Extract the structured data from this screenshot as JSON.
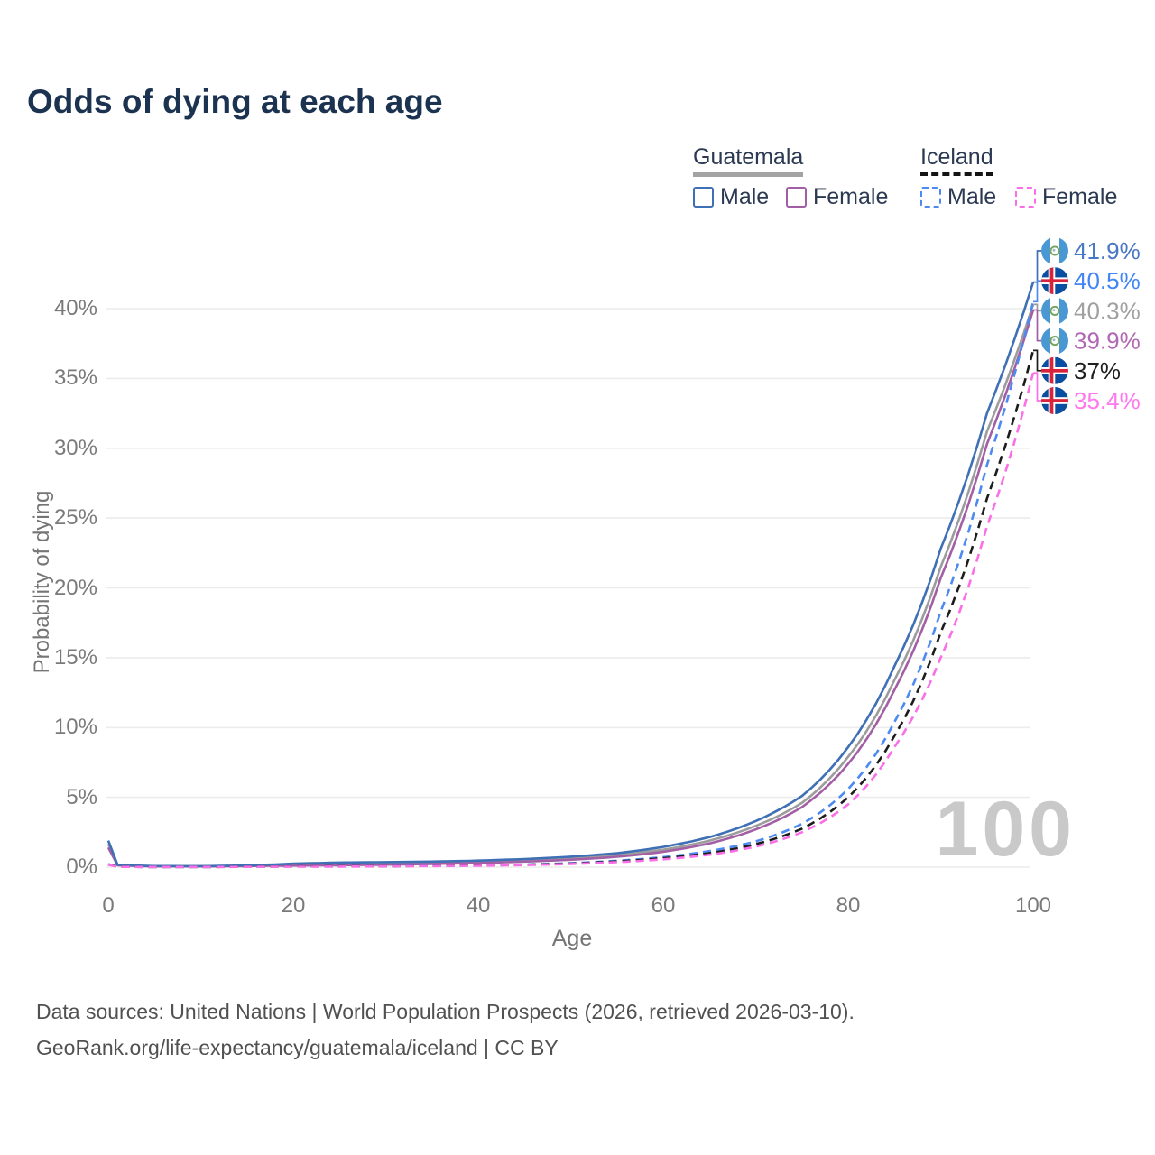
{
  "title": "Odds of dying at each age",
  "legend": {
    "groups": [
      {
        "name": "Guatemala",
        "style": "solid",
        "items": [
          {
            "label": "Male",
            "color": "#3f6fb4"
          },
          {
            "label": "Female",
            "color": "#a35fa6"
          }
        ]
      },
      {
        "name": "Iceland",
        "style": "dashed",
        "items": [
          {
            "label": "Male",
            "color": "#4d8af0"
          },
          {
            "label": "Female",
            "color": "#fa6fe8"
          }
        ]
      }
    ]
  },
  "axes": {
    "x_title": "Age",
    "y_title": "Probability of dying",
    "x_ticks": [
      "0",
      "20",
      "40",
      "60",
      "80",
      "100"
    ],
    "y_ticks": [
      "0%",
      "5%",
      "10%",
      "15%",
      "20%",
      "25%",
      "30%",
      "35%",
      "40%"
    ]
  },
  "footer": {
    "line1": "Data sources: United Nations | World Population Prospects (2026, retrieved 2026-03-10).",
    "line2": "GeoRank.org/life-expectancy/guatemala/iceland | CC BY"
  },
  "theme": {
    "title_color": "#1b3350",
    "grid_color": "#ececec",
    "tick_color": "#7a7a7a",
    "watermark_color": "#c9c9c9",
    "footer_color": "#515151"
  },
  "chart_data": {
    "type": "line",
    "title": "Odds of dying at each age",
    "xlabel": "Age",
    "ylabel": "Probability of dying",
    "x_range": [
      0,
      100
    ],
    "y_range_pct": [
      0,
      44
    ],
    "grid": "horizontal-only",
    "legend_position": "top-right",
    "watermark_age_indicator": "100",
    "ages": [
      0,
      1,
      5,
      10,
      15,
      20,
      25,
      30,
      35,
      40,
      45,
      50,
      55,
      60,
      65,
      70,
      75,
      80,
      85,
      90,
      95,
      100
    ],
    "series": [
      {
        "name": "Guatemala Male",
        "country": "guatemala",
        "sex": "male",
        "style": "solid",
        "color": "#3f6fb4",
        "label_color": "#4878c4",
        "end_label": "41.9%",
        "end_value_pct": 41.9,
        "values_pct": [
          1.9,
          0.17,
          0.08,
          0.07,
          0.13,
          0.26,
          0.33,
          0.36,
          0.4,
          0.47,
          0.58,
          0.75,
          1.0,
          1.45,
          2.15,
          3.3,
          5.1,
          8.6,
          14.4,
          22.8,
          32.5,
          41.9
        ]
      },
      {
        "name": "Iceland Male",
        "country": "iceland",
        "sex": "male",
        "style": "dashed",
        "color": "#4d8af0",
        "label_color": "#4285f4",
        "end_label": "40.5%",
        "end_value_pct": 40.5,
        "values_pct": [
          0.22,
          0.03,
          0.01,
          0.01,
          0.04,
          0.06,
          0.07,
          0.08,
          0.1,
          0.13,
          0.19,
          0.29,
          0.46,
          0.72,
          1.15,
          1.85,
          3.1,
          5.6,
          10.4,
          18.3,
          28.8,
          40.5
        ]
      },
      {
        "name": "Guatemala (both sexes)",
        "country": "guatemala",
        "sex": "all",
        "style": "solid",
        "color": "#9c9c9c",
        "label_color": "#a0a0a0",
        "end_label": "40.3%",
        "end_value_pct": 40.3,
        "values_pct": [
          1.65,
          0.15,
          0.07,
          0.06,
          0.1,
          0.19,
          0.24,
          0.27,
          0.31,
          0.38,
          0.48,
          0.63,
          0.86,
          1.25,
          1.9,
          2.95,
          4.6,
          7.9,
          13.4,
          21.5,
          31.2,
          40.3
        ]
      },
      {
        "name": "Guatemala Female",
        "country": "guatemala",
        "sex": "female",
        "style": "solid",
        "color": "#a35fa6",
        "label_color": "#b168b4",
        "end_label": "39.9%",
        "end_value_pct": 39.9,
        "values_pct": [
          1.4,
          0.13,
          0.06,
          0.05,
          0.08,
          0.11,
          0.14,
          0.18,
          0.23,
          0.3,
          0.4,
          0.53,
          0.74,
          1.1,
          1.7,
          2.7,
          4.3,
          7.4,
          12.7,
          20.7,
          30.3,
          39.9
        ]
      },
      {
        "name": "Iceland (both sexes)",
        "country": "iceland",
        "sex": "all",
        "style": "dashed",
        "color": "#1c1c1c",
        "label_color": "#1f1f1f",
        "end_label": "37%",
        "end_value_pct": 37.0,
        "values_pct": [
          0.19,
          0.03,
          0.01,
          0.01,
          0.03,
          0.05,
          0.06,
          0.07,
          0.09,
          0.12,
          0.17,
          0.26,
          0.41,
          0.64,
          1.0,
          1.65,
          2.75,
          5.0,
          9.4,
          16.8,
          26.4,
          37.0
        ]
      },
      {
        "name": "Iceland Female",
        "country": "iceland",
        "sex": "female",
        "style": "dashed",
        "color": "#fa6fe8",
        "label_color": "#ff78ee",
        "end_label": "35.4%",
        "end_value_pct": 35.4,
        "values_pct": [
          0.17,
          0.02,
          0.01,
          0.01,
          0.02,
          0.03,
          0.04,
          0.06,
          0.08,
          0.1,
          0.15,
          0.23,
          0.36,
          0.56,
          0.89,
          1.47,
          2.5,
          4.5,
          8.6,
          15.0,
          24.4,
          35.4
        ]
      }
    ]
  }
}
